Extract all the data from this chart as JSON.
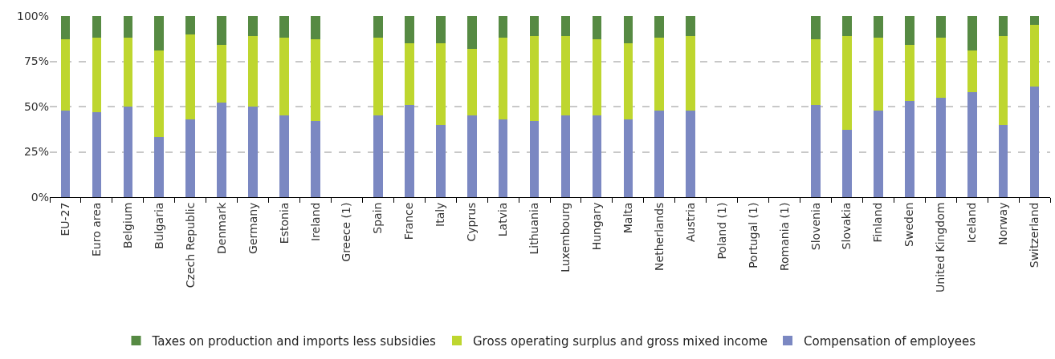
{
  "chart_data": {
    "type": "bar",
    "stacked": true,
    "categories": [
      "EU-27",
      "Euro area",
      "Belgium",
      "Bulgaria",
      "Czech Republic",
      "Denmark",
      "Germany",
      "Estonia",
      "Ireland",
      "Greece (1)",
      "Spain",
      "France",
      "Italy",
      "Cyprus",
      "Latvia",
      "Lithuania",
      "Luxembourg",
      "Hungary",
      "Malta",
      "Netherlands",
      "Austria",
      "Poland (1)",
      "Portugal (1)",
      "Romania (1)",
      "Slovenia",
      "Slovakia",
      "Finland",
      "Sweden",
      "United Kingdom",
      "Iceland",
      "Norway",
      "Switzerland"
    ],
    "series": [
      {
        "name": "Compensation of employees",
        "color": "#7b88c2",
        "values": [
          48,
          47,
          50,
          33,
          43,
          52,
          50,
          45,
          42,
          null,
          45,
          51,
          40,
          45,
          43,
          42,
          45,
          45,
          43,
          48,
          48,
          null,
          null,
          null,
          51,
          37,
          48,
          53,
          55,
          58,
          40,
          61
        ]
      },
      {
        "name": "Gross operating surplus and gross mixed income",
        "color": "#bed62f",
        "values": [
          39,
          41,
          38,
          48,
          47,
          32,
          39,
          43,
          45,
          null,
          43,
          34,
          45,
          37,
          45,
          47,
          44,
          42,
          42,
          40,
          41,
          null,
          null,
          null,
          36,
          52,
          40,
          31,
          33,
          23,
          49,
          34
        ]
      },
      {
        "name": "Taxes on production and imports less subsidies",
        "color": "#568a43",
        "values": [
          13,
          12,
          12,
          19,
          10,
          16,
          11,
          12,
          13,
          null,
          12,
          15,
          15,
          18,
          12,
          11,
          11,
          13,
          15,
          12,
          11,
          null,
          null,
          null,
          13,
          11,
          12,
          16,
          12,
          19,
          11,
          5
        ]
      }
    ],
    "ylim": [
      0,
      100
    ],
    "yticks": [
      {
        "value": 0,
        "label": "0%"
      },
      {
        "value": 25,
        "label": "25%"
      },
      {
        "value": 50,
        "label": "50%"
      },
      {
        "value": 75,
        "label": "75%"
      },
      {
        "value": 100,
        "label": "100%"
      }
    ],
    "grid": "y",
    "legend": "bottom"
  }
}
